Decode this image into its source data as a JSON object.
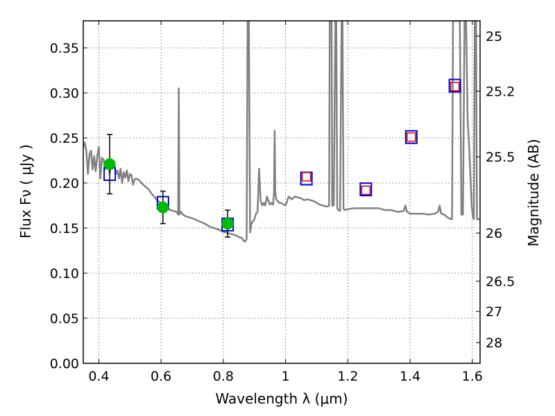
{
  "chart_data": {
    "type": "scatter",
    "xlabel": "Wavelength  λ (μm)",
    "ylabel": "Flux  Fν  ( μJy )",
    "y2label": "Magnitude (AB)",
    "xlim": [
      0.35,
      1.625
    ],
    "ylim": [
      0.0,
      0.38
    ],
    "grid": true,
    "x_ticks": [
      0.4,
      0.6,
      0.8,
      1.0,
      1.2,
      1.4,
      1.6
    ],
    "x_tick_labels": [
      "0.4",
      "0.6",
      "0.8",
      "1",
      "1.2",
      "1.4",
      "1.6"
    ],
    "y_ticks": [
      0.0,
      0.05,
      0.1,
      0.15,
      0.2,
      0.25,
      0.3,
      0.35
    ],
    "y_tick_labels": [
      "0.00",
      "0.05",
      "0.10",
      "0.15",
      "0.20",
      "0.25",
      "0.30",
      "0.35"
    ],
    "mag_ticks": [
      25,
      25.2,
      25.5,
      26,
      26.5,
      27,
      28
    ],
    "mag_tick_labels": [
      "25",
      "25.2",
      "25.5",
      "26",
      "26.5",
      "27",
      "28"
    ],
    "observed": {
      "color": "#00bb00",
      "points": [
        {
          "x": 0.435,
          "y": 0.221,
          "err": 0.033
        },
        {
          "x": 0.606,
          "y": 0.173,
          "err": 0.018
        },
        {
          "x": 0.814,
          "y": 0.155,
          "err": 0.015
        }
      ]
    },
    "model_photometry": {
      "color": "#0000dd",
      "points": [
        {
          "x": 0.435,
          "y": 0.21
        },
        {
          "x": 0.606,
          "y": 0.178
        },
        {
          "x": 0.814,
          "y": 0.154
        },
        {
          "x": 1.067,
          "y": 0.205
        },
        {
          "x": 1.258,
          "y": 0.193
        },
        {
          "x": 1.404,
          "y": 0.251
        },
        {
          "x": 1.544,
          "y": 0.308
        }
      ]
    },
    "predicted_photometry": {
      "color": "#dd0000",
      "points": [
        {
          "x": 1.067,
          "y": 0.207
        },
        {
          "x": 1.258,
          "y": 0.192
        },
        {
          "x": 1.404,
          "y": 0.251
        },
        {
          "x": 1.544,
          "y": 0.307
        }
      ]
    },
    "model_spectrum": {
      "color": "#808080",
      "points": [
        [
          0.35,
          0.24
        ],
        [
          0.355,
          0.245
        ],
        [
          0.36,
          0.235
        ],
        [
          0.365,
          0.21
        ],
        [
          0.37,
          0.232
        ],
        [
          0.375,
          0.236
        ],
        [
          0.38,
          0.215
        ],
        [
          0.385,
          0.23
        ],
        [
          0.39,
          0.213
        ],
        [
          0.395,
          0.23
        ],
        [
          0.4,
          0.24
        ],
        [
          0.405,
          0.205
        ],
        [
          0.41,
          0.228
        ],
        [
          0.415,
          0.226
        ],
        [
          0.42,
          0.215
        ],
        [
          0.425,
          0.224
        ],
        [
          0.43,
          0.225
        ],
        [
          0.435,
          0.21
        ],
        [
          0.44,
          0.222
        ],
        [
          0.445,
          0.218
        ],
        [
          0.45,
          0.22
        ],
        [
          0.455,
          0.21
        ],
        [
          0.46,
          0.214
        ],
        [
          0.465,
          0.205
        ],
        [
          0.47,
          0.216
        ],
        [
          0.475,
          0.2
        ],
        [
          0.48,
          0.212
        ],
        [
          0.485,
          0.206
        ],
        [
          0.49,
          0.214
        ],
        [
          0.495,
          0.202
        ],
        [
          0.5,
          0.21
        ],
        [
          0.505,
          0.209
        ],
        [
          0.51,
          0.198
        ],
        [
          0.515,
          0.204
        ],
        [
          0.52,
          0.205
        ],
        [
          0.53,
          0.203
        ],
        [
          0.54,
          0.199
        ],
        [
          0.55,
          0.196
        ],
        [
          0.56,
          0.193
        ],
        [
          0.57,
          0.188
        ],
        [
          0.58,
          0.184
        ],
        [
          0.59,
          0.18
        ],
        [
          0.6,
          0.178
        ],
        [
          0.61,
          0.174
        ],
        [
          0.62,
          0.172
        ],
        [
          0.63,
          0.17
        ],
        [
          0.64,
          0.169
        ],
        [
          0.65,
          0.168
        ],
        [
          0.655,
          0.165
        ],
        [
          0.657,
          0.305
        ],
        [
          0.659,
          0.165
        ],
        [
          0.665,
          0.168
        ],
        [
          0.67,
          0.165
        ],
        [
          0.68,
          0.163
        ],
        [
          0.7,
          0.161
        ],
        [
          0.72,
          0.158
        ],
        [
          0.74,
          0.155
        ],
        [
          0.76,
          0.151
        ],
        [
          0.78,
          0.149
        ],
        [
          0.8,
          0.146
        ],
        [
          0.82,
          0.144
        ],
        [
          0.84,
          0.142
        ],
        [
          0.85,
          0.14
        ],
        [
          0.86,
          0.139
        ],
        [
          0.865,
          0.136
        ],
        [
          0.87,
          0.135
        ],
        [
          0.875,
          0.138
        ],
        [
          0.878,
          0.38
        ],
        [
          0.882,
          0.38
        ],
        [
          0.886,
          0.145
        ],
        [
          0.89,
          0.155
        ],
        [
          0.9,
          0.16
        ],
        [
          0.905,
          0.166
        ],
        [
          0.91,
          0.168
        ],
        [
          0.915,
          0.216
        ],
        [
          0.92,
          0.18
        ],
        [
          0.925,
          0.175
        ],
        [
          0.93,
          0.178
        ],
        [
          0.935,
          0.175
        ],
        [
          0.94,
          0.185
        ],
        [
          0.945,
          0.18
        ],
        [
          0.95,
          0.176
        ],
        [
          0.955,
          0.178
        ],
        [
          0.96,
          0.176
        ],
        [
          0.963,
          0.19
        ],
        [
          0.965,
          0.258
        ],
        [
          0.967,
          0.19
        ],
        [
          0.97,
          0.182
        ],
        [
          0.975,
          0.18
        ],
        [
          0.98,
          0.178
        ],
        [
          0.985,
          0.178
        ],
        [
          0.99,
          0.177
        ],
        [
          1.0,
          0.175
        ],
        [
          1.01,
          0.185
        ],
        [
          1.02,
          0.182
        ],
        [
          1.03,
          0.185
        ],
        [
          1.04,
          0.184
        ],
        [
          1.05,
          0.183
        ],
        [
          1.06,
          0.181
        ],
        [
          1.07,
          0.182
        ],
        [
          1.08,
          0.181
        ],
        [
          1.09,
          0.18
        ],
        [
          1.1,
          0.178
        ],
        [
          1.11,
          0.176
        ],
        [
          1.12,
          0.175
        ],
        [
          1.13,
          0.174
        ],
        [
          1.135,
          0.174
        ],
        [
          1.14,
          0.175
        ],
        [
          1.142,
          0.38
        ],
        [
          1.148,
          0.38
        ],
        [
          1.15,
          0.175
        ],
        [
          1.155,
          0.175
        ],
        [
          1.16,
          0.38
        ],
        [
          1.163,
          0.38
        ],
        [
          1.166,
          0.172
        ],
        [
          1.17,
          0.17
        ],
        [
          1.175,
          0.169
        ],
        [
          1.18,
          0.38
        ],
        [
          1.183,
          0.38
        ],
        [
          1.186,
          0.172
        ],
        [
          1.19,
          0.17
        ],
        [
          1.2,
          0.171
        ],
        [
          1.22,
          0.172
        ],
        [
          1.24,
          0.172
        ],
        [
          1.26,
          0.172
        ],
        [
          1.28,
          0.172
        ],
        [
          1.3,
          0.172
        ],
        [
          1.32,
          0.17
        ],
        [
          1.34,
          0.17
        ],
        [
          1.36,
          0.168
        ],
        [
          1.38,
          0.169
        ],
        [
          1.385,
          0.175
        ],
        [
          1.39,
          0.168
        ],
        [
          1.4,
          0.166
        ],
        [
          1.42,
          0.166
        ],
        [
          1.44,
          0.166
        ],
        [
          1.46,
          0.165
        ],
        [
          1.48,
          0.166
        ],
        [
          1.49,
          0.168
        ],
        [
          1.495,
          0.175
        ],
        [
          1.5,
          0.166
        ],
        [
          1.51,
          0.165
        ],
        [
          1.52,
          0.162
        ],
        [
          1.53,
          0.16
        ],
        [
          1.535,
          0.16
        ],
        [
          1.538,
          0.38
        ],
        [
          1.545,
          0.38
        ],
        [
          1.555,
          0.38
        ],
        [
          1.56,
          0.38
        ],
        [
          1.565,
          0.165
        ],
        [
          1.57,
          0.165
        ],
        [
          1.575,
          0.38
        ],
        [
          1.58,
          0.38
        ],
        [
          1.585,
          0.27
        ],
        [
          1.59,
          0.24
        ],
        [
          1.595,
          0.2
        ],
        [
          1.598,
          0.175
        ],
        [
          1.602,
          0.162
        ],
        [
          1.605,
          0.16
        ],
        [
          1.608,
          0.38
        ],
        [
          1.612,
          0.38
        ],
        [
          1.615,
          0.16
        ],
        [
          1.625,
          0.16
        ]
      ]
    }
  }
}
